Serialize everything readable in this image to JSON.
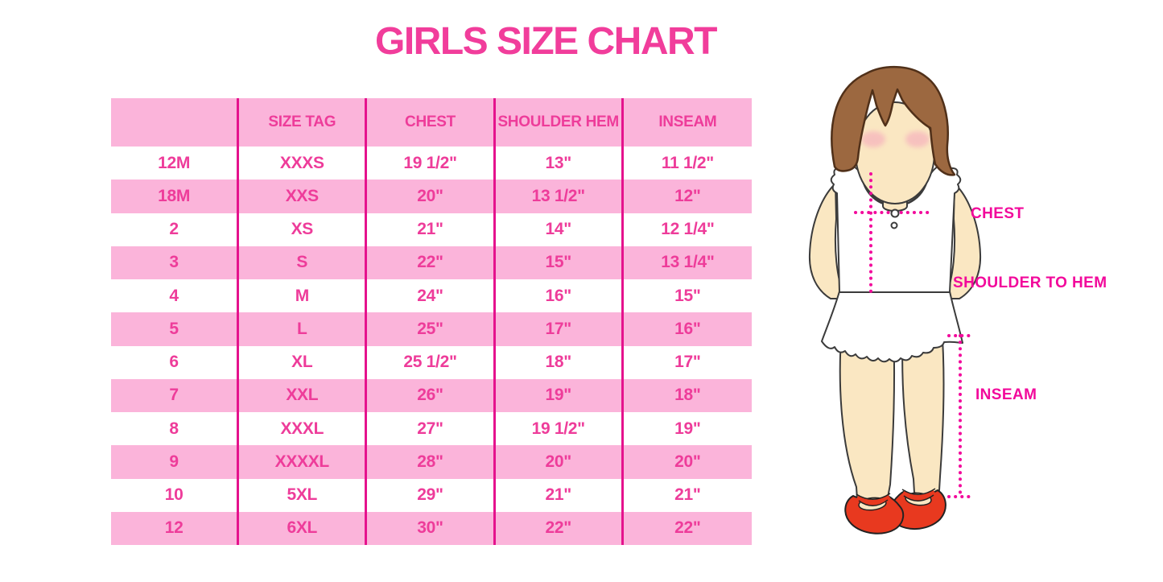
{
  "title": "GIRLS SIZE CHART",
  "colors": {
    "title_pink": "#F13D9B",
    "row_stripe_pink": "#FBB4DA",
    "table_divider_magenta": "#E5128D",
    "table_text_pink": "#EE3C9A",
    "measure_label_magenta": "#F2089B",
    "dotted_line_magenta": "#F20B9C",
    "hair_brown": "#9C6840",
    "skin_tone": "#FAE7C2",
    "shoe_red": "#E8391F"
  },
  "size_table": {
    "headers": [
      "",
      "SIZE TAG",
      "CHEST",
      "SHOULDER HEM",
      "INSEAM"
    ],
    "rows": [
      [
        "12M",
        "XXXS",
        "19 1/2\"",
        "13\"",
        "11 1/2\""
      ],
      [
        "18M",
        "XXS",
        "20\"",
        "13 1/2\"",
        "12\""
      ],
      [
        "2",
        "XS",
        "21\"",
        "14\"",
        "12 1/4\""
      ],
      [
        "3",
        "S",
        "22\"",
        "15\"",
        "13 1/4\""
      ],
      [
        "4",
        "M",
        "24\"",
        "16\"",
        "15\""
      ],
      [
        "5",
        "L",
        "25\"",
        "17\"",
        "16\""
      ],
      [
        "6",
        "XL",
        "25 1/2\"",
        "18\"",
        "17\""
      ],
      [
        "7",
        "XXL",
        "26\"",
        "19\"",
        "18\""
      ],
      [
        "8",
        "XXXL",
        "27\"",
        "19 1/2\"",
        "19\""
      ],
      [
        "9",
        "XXXXL",
        "28\"",
        "20\"",
        "20\""
      ],
      [
        "10",
        "5XL",
        "29\"",
        "21\"",
        "21\""
      ],
      [
        "12",
        "6XL",
        "30\"",
        "22\"",
        "22\""
      ]
    ]
  },
  "figure": {
    "chest_label": "CHEST",
    "shoulder_to_hem_label": "SHOULDER TO HEM",
    "inseam_label": "INSEAM"
  }
}
